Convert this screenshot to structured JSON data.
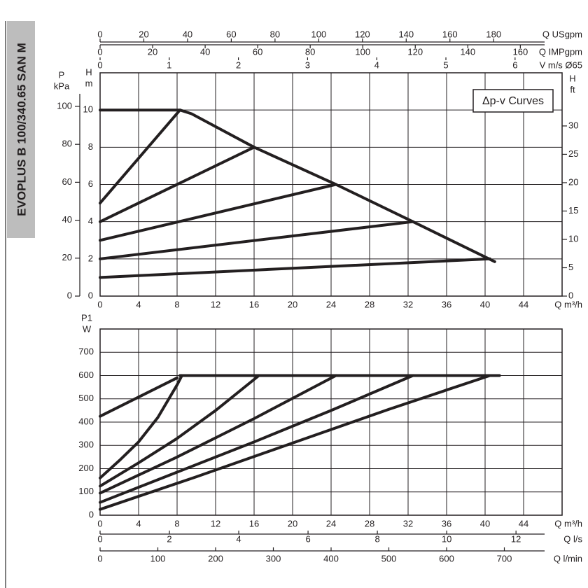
{
  "title": "EVOPLUS B 100/340.65 SAN M",
  "chart_data": [
    {
      "type": "line",
      "annotation": "Δp-v Curves",
      "x_label": "Q m³/h",
      "xlim": [
        0,
        48
      ],
      "xticks": [
        0,
        4,
        8,
        12,
        16,
        20,
        24,
        28,
        32,
        36,
        40,
        44
      ],
      "y_label": "H",
      "y_unit": "m",
      "ylim": [
        0,
        12
      ],
      "yticks": [
        0,
        2,
        4,
        6,
        8,
        10
      ],
      "left_axis": {
        "label": "P",
        "unit": "kPa",
        "lim": [
          0,
          117.7
        ],
        "ticks": [
          0,
          20,
          40,
          60,
          80,
          100
        ]
      },
      "y2_label": "H",
      "y2_unit": "ft",
      "y2lim": [
        0,
        39.37
      ],
      "y2ticks": [
        0,
        5,
        10,
        15,
        20,
        25,
        30
      ],
      "top_axes": [
        {
          "label": "Q USgpm",
          "lim": [
            0,
            211.3
          ],
          "ticks": [
            0,
            20,
            40,
            60,
            80,
            100,
            120,
            140,
            160,
            180
          ]
        },
        {
          "label": "Q IMPgpm",
          "lim": [
            0,
            175.9
          ],
          "ticks": [
            0,
            20,
            40,
            60,
            80,
            100,
            120,
            140,
            160
          ]
        },
        {
          "label": "V m/s Ø65",
          "lim": [
            0,
            6.68
          ],
          "ticks": [
            0,
            1,
            2,
            3,
            4,
            5,
            6
          ]
        }
      ],
      "grid": true,
      "color": "#231f20",
      "series": [
        {
          "x": [
            0,
            8.3,
            9.5,
            16,
            24.5,
            32.5,
            41
          ],
          "values": [
            10,
            10,
            9.8,
            8,
            6,
            4,
            1.85
          ]
        },
        {
          "x": [
            0,
            8.3
          ],
          "values": [
            5,
            10
          ]
        },
        {
          "x": [
            0,
            16
          ],
          "values": [
            4,
            8
          ]
        },
        {
          "x": [
            0,
            24.5
          ],
          "values": [
            3,
            6
          ]
        },
        {
          "x": [
            0,
            32.5
          ],
          "values": [
            2,
            4
          ]
        },
        {
          "x": [
            0,
            40.5
          ],
          "values": [
            1,
            2
          ]
        }
      ]
    },
    {
      "type": "line",
      "x_label": "Q m³/h",
      "xlim": [
        0,
        48
      ],
      "xticks": [
        0,
        4,
        8,
        12,
        16,
        20,
        24,
        28,
        32,
        36,
        40,
        44
      ],
      "y_label": "P1",
      "y_unit": "W",
      "ylim": [
        0,
        800
      ],
      "yticks": [
        0,
        100,
        200,
        300,
        400,
        500,
        600,
        700
      ],
      "bottom_axes": [
        {
          "label": "Q l/s",
          "lim": [
            0,
            13.33
          ],
          "ticks": [
            0,
            2,
            4,
            6,
            8,
            10,
            12
          ]
        },
        {
          "label": "Q l/min",
          "lim": [
            0,
            800
          ],
          "ticks": [
            0,
            100,
            200,
            300,
            400,
            500,
            600,
            700
          ]
        }
      ],
      "grid": true,
      "color": "#231f20",
      "series": [
        {
          "x": [
            8.3,
            41.5
          ],
          "values": [
            600,
            600
          ]
        },
        {
          "x": [
            0,
            8
          ],
          "values": [
            425,
            590
          ]
        },
        {
          "x": [
            0,
            2,
            4,
            6,
            8,
            8.5
          ],
          "values": [
            160,
            235,
            315,
            420,
            560,
            600
          ]
        },
        {
          "x": [
            0,
            4,
            8,
            12,
            16.5
          ],
          "values": [
            125,
            225,
            330,
            450,
            600
          ]
        },
        {
          "x": [
            0,
            8,
            16,
            24.5
          ],
          "values": [
            95,
            250,
            415,
            600
          ]
        },
        {
          "x": [
            0,
            8,
            16,
            24,
            32.5
          ],
          "values": [
            55,
            185,
            315,
            450,
            600
          ]
        },
        {
          "x": [
            0,
            10,
            20,
            30,
            40.5
          ],
          "values": [
            25,
            165,
            310,
            455,
            600
          ]
        }
      ]
    }
  ]
}
